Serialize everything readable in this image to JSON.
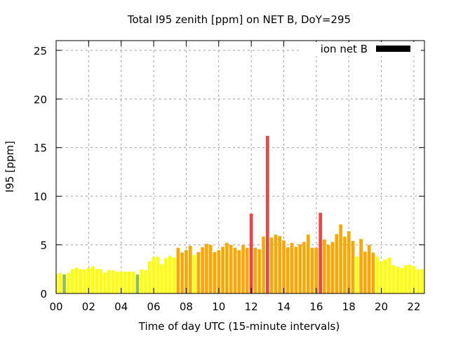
{
  "chart_data": {
    "type": "bar",
    "title": "Total I95 zenith [ppm] on NET B, DoY=295",
    "xlabel": "Time of day UTC (15-minute intervals)",
    "ylabel": "I95 [ppm]",
    "xlim": [
      0,
      22.65
    ],
    "ylim": [
      0,
      26
    ],
    "grid": true,
    "legend": {
      "label": "ion net B",
      "placement": "top-right"
    },
    "x_ticks": [
      {
        "value": 0,
        "label": "00"
      },
      {
        "value": 2,
        "label": "02"
      },
      {
        "value": 4,
        "label": "04"
      },
      {
        "value": 6,
        "label": "06"
      },
      {
        "value": 8,
        "label": "08"
      },
      {
        "value": 10,
        "label": "10"
      },
      {
        "value": 12,
        "label": "12"
      },
      {
        "value": 14,
        "label": "14"
      },
      {
        "value": 16,
        "label": "16"
      },
      {
        "value": 18,
        "label": "18"
      },
      {
        "value": 20,
        "label": "20"
      },
      {
        "value": 22,
        "label": "22"
      }
    ],
    "y_ticks": [
      {
        "value": 0,
        "label": "0"
      },
      {
        "value": 5,
        "label": "5"
      },
      {
        "value": 10,
        "label": "10"
      },
      {
        "value": 15,
        "label": "15"
      },
      {
        "value": 20,
        "label": "20"
      },
      {
        "value": 25,
        "label": "25"
      }
    ],
    "interval_hours": 0.25,
    "values": [
      2.0,
      2.1,
      1.95,
      2.1,
      2.5,
      2.65,
      2.5,
      2.45,
      2.6,
      2.8,
      2.5,
      2.5,
      2.15,
      2.4,
      2.4,
      2.25,
      2.25,
      2.25,
      2.25,
      2.25,
      1.95,
      2.45,
      2.4,
      3.3,
      3.7,
      3.8,
      3.0,
      3.6,
      3.85,
      3.7,
      4.7,
      4.2,
      4.45,
      4.9,
      3.95,
      4.25,
      4.75,
      5.1,
      5.0,
      4.25,
      4.45,
      4.8,
      5.2,
      5.0,
      4.7,
      4.45,
      5.0,
      4.7,
      8.2,
      4.7,
      4.55,
      5.85,
      16.2,
      5.75,
      6.05,
      5.9,
      5.45,
      4.75,
      5.2,
      4.8,
      5.05,
      5.3,
      6.05,
      4.7,
      4.7,
      8.3,
      5.55,
      5.0,
      5.3,
      6.1,
      7.1,
      5.85,
      6.4,
      5.4,
      3.8,
      5.6,
      4.3,
      5.0,
      4.2,
      3.8,
      3.3,
      3.5,
      3.7,
      2.9,
      2.75,
      2.6,
      2.9,
      2.95,
      2.8,
      2.45,
      2.5,
      2.95
    ],
    "color_scale": [
      {
        "max": 2.0,
        "color": "#8bc34a"
      },
      {
        "max": 4.0,
        "color": "#ffff00"
      },
      {
        "max": 8.0,
        "color": "#ffa500"
      },
      {
        "max": 1000,
        "color": "#ee4444"
      }
    ],
    "legend_color": "#000000",
    "grid_color": "#a0a0a0"
  }
}
